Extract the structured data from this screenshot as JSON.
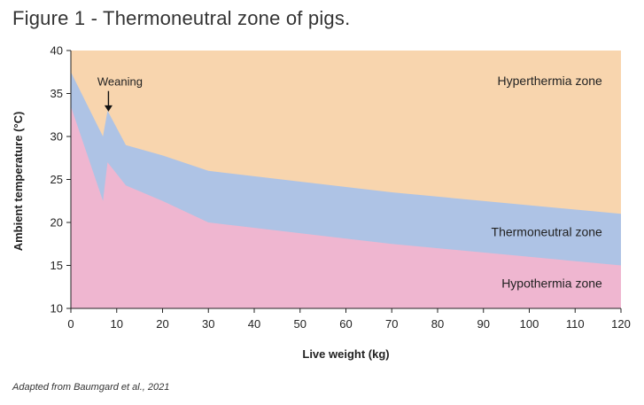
{
  "figure_title": "Figure 1 - Thermoneutral zone of pigs.",
  "source": "Adapted from Baumgard et al., 2021",
  "colors": {
    "hyperthermia": "#f8d5ae",
    "thermoneutral": "#aec3e5",
    "hypothermia": "#efb6d0",
    "axis": "#222222"
  },
  "chart_data": {
    "type": "area",
    "title": "",
    "xlabel": "Live weight (kg)",
    "ylabel": "Ambient temperature (°C)",
    "xlim": [
      0,
      120
    ],
    "ylim": [
      10,
      40
    ],
    "xticks": [
      0,
      10,
      20,
      30,
      40,
      50,
      60,
      70,
      80,
      90,
      100,
      110,
      120
    ],
    "yticks": [
      10,
      15,
      20,
      25,
      30,
      35,
      40
    ],
    "series": [
      {
        "name": "Hypothermia zone",
        "color_key": "hypothermia",
        "x": [
          0,
          7,
          8,
          12,
          20,
          30,
          70,
          120
        ],
        "y": [
          33.5,
          22.5,
          27,
          24.3,
          22.5,
          20,
          17.5,
          15
        ]
      },
      {
        "name": "Thermoneutral zone",
        "color_key": "thermoneutral",
        "x": [
          0,
          7,
          8,
          12,
          20,
          30,
          70,
          120
        ],
        "y": [
          37.5,
          30,
          33,
          29,
          27.8,
          26,
          23.5,
          21
        ]
      },
      {
        "name": "Hyperthermia zone",
        "color_key": "hyperthermia",
        "x": [
          0,
          120
        ],
        "y": [
          40,
          40
        ]
      }
    ],
    "annotations": [
      {
        "text": "Weaning",
        "x": 8.2,
        "y": 35.7,
        "arrow_to_y": 32.9
      }
    ],
    "zone_labels": [
      {
        "text": "Hyperthermia zone",
        "x": 119,
        "y": 36
      },
      {
        "text": "Thermoneutral zone",
        "x": 119,
        "y": 18.4
      },
      {
        "text": "Hypothermia zone",
        "x": 119,
        "y": 12.4
      }
    ]
  }
}
